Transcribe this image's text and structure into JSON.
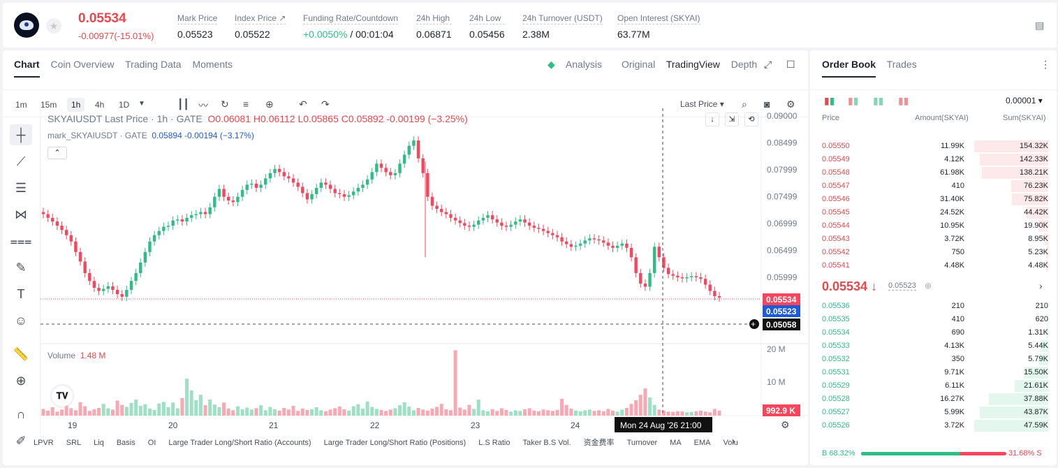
{
  "header": {
    "last_price": "0.05534",
    "change": "-0.00977(-15.01%)",
    "stats": [
      {
        "label": "Mark Price",
        "value": "0.05523"
      },
      {
        "label": "Index Price ↗",
        "value": "0.05522"
      },
      {
        "label": "Funding Rate/Countdown",
        "value_green": "+0.0050%",
        "value": "/ 00:01:04"
      },
      {
        "label": "24h High",
        "value": "0.06871"
      },
      {
        "label": "24h Low",
        "value": "0.05456"
      },
      {
        "label": "24h Turnover (USDT)",
        "value": "2.38M"
      },
      {
        "label": "Open Interest (SKYAI)",
        "value": "63.77M"
      }
    ]
  },
  "chart_tabs": [
    "Chart",
    "Coin Overview",
    "Trading Data",
    "Moments"
  ],
  "view_tabs": {
    "analysis": "Analysis",
    "original": "Original",
    "tradingview": "TradingView",
    "depth": "Depth"
  },
  "timeframes": [
    "1m",
    "15m",
    "1h",
    "4h",
    "1D"
  ],
  "price_source": "Last Price",
  "legend": {
    "main": "SKYAIUSDT Last Price · 1h · GATE",
    "o": "O0.06081",
    "h": "H0.06112",
    "l": "L0.05865",
    "c": "C0.05892",
    "chg": "-0.00199 (−3.25%)",
    "mark": "mark_SKYAIUSDT · GATE",
    "mark_val": "0.05894",
    "mark_chg": "-0.00194 (−3.17%)"
  },
  "volume_legend": {
    "label": "Volume",
    "value": "1.48 M"
  },
  "price_axis": [
    "0.09000",
    "0.08499",
    "0.07999",
    "0.07499",
    "0.06999",
    "0.06499",
    "0.05999"
  ],
  "price_tags": {
    "last": "0.05534",
    "mark": "0.05523",
    "cross": "0.05058",
    "volume": "992.9 K"
  },
  "volume_axis": [
    "20 M",
    "10 M"
  ],
  "x_axis": [
    "19",
    "20",
    "21",
    "22",
    "23",
    "24"
  ],
  "crosshair_time": "Mon 24 Aug '26   21:00",
  "indicators": [
    "LPVR",
    "SRL",
    "Liq",
    "Basis",
    "OI",
    "Large Trader Long/Short Ratio (Accounts)",
    "Large Trader Long/Short Ratio (Positions)",
    "L.S Ratio",
    "Taker B.S Vol.",
    "资金费率",
    "Turnover",
    "MA",
    "EMA",
    "Volu"
  ],
  "orderbook": {
    "tabs": [
      "Order Book",
      "Trades"
    ],
    "precision": "0.00001",
    "headers": [
      "Price",
      "Amount(SKYAI)",
      "Sum(SKYAI)"
    ],
    "asks": [
      [
        "0.05550",
        "11.99K",
        "154.32K",
        1.0
      ],
      [
        "0.05549",
        "4.12K",
        "142.33K",
        0.92
      ],
      [
        "0.05548",
        "61.98K",
        "138.21K",
        0.9
      ],
      [
        "0.05547",
        "410",
        "76.23K",
        0.5
      ],
      [
        "0.05546",
        "31.40K",
        "75.82K",
        0.49
      ],
      [
        "0.05545",
        "24.52K",
        "44.42K",
        0.29
      ],
      [
        "0.05544",
        "10.95K",
        "19.90K",
        0.13
      ],
      [
        "0.05543",
        "3.72K",
        "8.95K",
        0.06
      ],
      [
        "0.05542",
        "750",
        "5.23K",
        0.03
      ],
      [
        "0.05541",
        "4.48K",
        "4.48K",
        0.03
      ]
    ],
    "mid_price": "0.05534",
    "mid_mark": "0.05523",
    "bids": [
      [
        "0.05536",
        "210",
        "210",
        0.0
      ],
      [
        "0.05535",
        "410",
        "620",
        0.01
      ],
      [
        "0.05534",
        "690",
        "1.31K",
        0.03
      ],
      [
        "0.05533",
        "4.13K",
        "5.44K",
        0.11
      ],
      [
        "0.05532",
        "350",
        "5.79K",
        0.12
      ],
      [
        "0.05531",
        "9.71K",
        "15.50K",
        0.33
      ],
      [
        "0.05529",
        "6.11K",
        "21.61K",
        0.45
      ],
      [
        "0.05528",
        "16.27K",
        "37.88K",
        0.8
      ],
      [
        "0.05527",
        "5.99K",
        "43.87K",
        0.92
      ],
      [
        "0.05526",
        "3.72K",
        "47.59K",
        1.0
      ]
    ],
    "buy_ratio": "B 68.32%",
    "sell_ratio": "31.68% S",
    "buy_fraction": 0.6832
  }
}
